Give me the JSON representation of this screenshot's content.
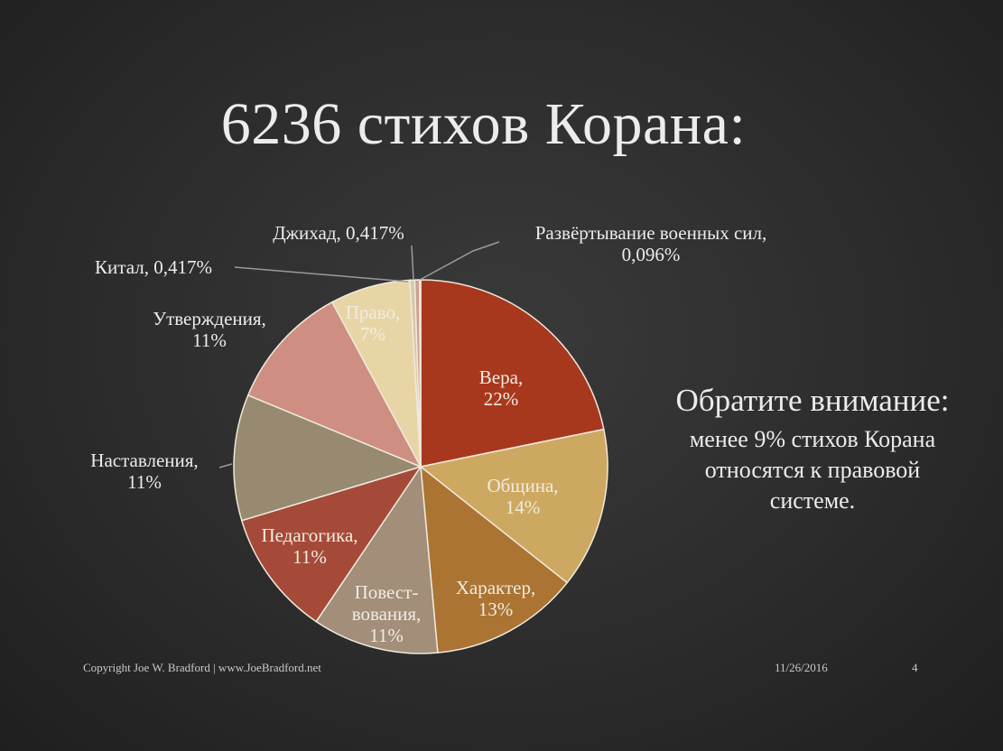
{
  "slide": {
    "title": "6236 стихов Корана:",
    "note_heading": "Обратите внимание:",
    "note_body": "менее 9% стихов Корана относятся к правовой системе.",
    "copyright": "Copyright Joe W. Bradford | www.JoeBradford.net",
    "date": "11/26/2016",
    "page_number": "4"
  },
  "chart_data": {
    "type": "pie",
    "title": "",
    "start": "clockwise from top",
    "slices": [
      {
        "label": [
          "Вера,",
          "22%"
        ],
        "value": 22,
        "color": "#a8381d",
        "label_pos": "inside"
      },
      {
        "label": [
          "Община,",
          "14%"
        ],
        "value": 14,
        "color": "#cda860",
        "label_pos": "inside"
      },
      {
        "label": [
          "Характер,",
          "13%"
        ],
        "value": 13,
        "color": "#ab7432",
        "label_pos": "inside"
      },
      {
        "label": [
          "Повест-",
          "вования,",
          "11%"
        ],
        "value": 11,
        "color": "#a28e79",
        "label_pos": "inside"
      },
      {
        "label": [
          "Педагогика,",
          "11%"
        ],
        "value": 11,
        "color": "#a54a38",
        "label_pos": "inside"
      },
      {
        "label": [
          "Наставления,",
          "11%"
        ],
        "value": 11,
        "color": "#978a70",
        "label_pos": "outside"
      },
      {
        "label": [
          "Утверждения,",
          "11%"
        ],
        "value": 11,
        "color": "#cf8e82",
        "label_pos": "outside"
      },
      {
        "label": [
          "Право,",
          "7%"
        ],
        "value": 7,
        "color": "#e8d5a6",
        "label_pos": "inside"
      },
      {
        "label": [
          "Китал, 0,417%"
        ],
        "value": 0.417,
        "color": "#d8c8a8",
        "label_pos": "outside"
      },
      {
        "label": [
          "Джихад, 0,417%"
        ],
        "value": 0.417,
        "color": "#cf9e92",
        "label_pos": "outside"
      },
      {
        "label": [
          "Развёртывание военных сил,",
          "0,096%"
        ],
        "value": 0.096,
        "color": "#e9dcc0",
        "label_pos": "outside"
      }
    ]
  }
}
